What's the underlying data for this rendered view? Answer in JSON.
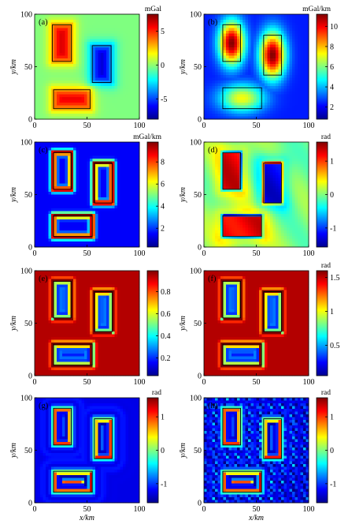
{
  "chart_data": [
    {
      "type": "heatmap",
      "panel_label": "(a)",
      "colorbar_unit": "mGal",
      "colorbar_ticks": [
        "5",
        "0",
        "-5"
      ],
      "colorbar_tick_values": [
        5,
        0,
        -5
      ],
      "colorbar_range": [
        -8,
        7.5
      ],
      "xlabel": "",
      "ylabel": "y/km",
      "xlim": [
        0,
        100
      ],
      "ylim": [
        0,
        100
      ],
      "x_ticks": [
        "0",
        "50",
        "100"
      ],
      "y_ticks": [
        "0",
        "50",
        "100"
      ],
      "bodies_km": [
        {
          "x0": 17,
          "x1": 35,
          "y0": 55,
          "y1": 90
        },
        {
          "x0": 55,
          "x1": 73,
          "y0": 35,
          "y1": 70
        },
        {
          "x0": 18,
          "x1": 53,
          "y0": 10,
          "y1": 28
        }
      ],
      "map": "gravity"
    },
    {
      "type": "heatmap",
      "panel_label": "(b)",
      "colorbar_unit": "mGal/km",
      "colorbar_ticks": [
        "10",
        "8",
        "6",
        "4",
        "2"
      ],
      "colorbar_tick_values": [
        10,
        8,
        6,
        4,
        2
      ],
      "colorbar_range": [
        0.8,
        11.2
      ],
      "xlabel": "",
      "ylabel": "y/km",
      "xlim": [
        0,
        100
      ],
      "ylim": [
        0,
        100
      ],
      "x_ticks": [
        "0",
        "50",
        "100"
      ],
      "y_ticks": [
        "0",
        "50",
        "100"
      ],
      "bodies_km": [
        {
          "x0": 18,
          "x1": 35,
          "y0": 55,
          "y1": 90
        },
        {
          "x0": 57,
          "x1": 74,
          "y0": 42,
          "y1": 80
        },
        {
          "x0": 18,
          "x1": 55,
          "y0": 10,
          "y1": 30
        }
      ],
      "map": "blob"
    },
    {
      "type": "heatmap",
      "panel_label": "(c)",
      "colorbar_unit": "mGal/km",
      "colorbar_ticks": [
        "8",
        "6",
        "4",
        "2"
      ],
      "colorbar_tick_values": [
        8,
        6,
        4,
        2
      ],
      "colorbar_range": [
        0.3,
        9.8
      ],
      "xlabel": "",
      "ylabel": "y/km",
      "xlim": [
        0,
        100
      ],
      "ylim": [
        0,
        100
      ],
      "x_ticks": [
        "0",
        "50",
        "100"
      ],
      "y_ticks": [
        "0",
        "50",
        "100"
      ],
      "bodies_km": [
        {
          "x0": 18,
          "x1": 35,
          "y0": 55,
          "y1": 90
        },
        {
          "x0": 57,
          "x1": 74,
          "y0": 42,
          "y1": 80
        },
        {
          "x0": 18,
          "x1": 55,
          "y0": 10,
          "y1": 30
        }
      ],
      "map": "edge"
    },
    {
      "type": "heatmap",
      "panel_label": "(d)",
      "colorbar_unit": "rad",
      "colorbar_ticks": [
        "1",
        "0",
        "-1"
      ],
      "colorbar_tick_values": [
        1,
        0,
        -1
      ],
      "colorbar_range": [
        -1.57,
        1.57
      ],
      "xlabel": "",
      "ylabel": "y/km",
      "xlim": [
        0,
        100
      ],
      "ylim": [
        0,
        100
      ],
      "x_ticks": [
        "0",
        "50",
        "100"
      ],
      "y_ticks": [
        "0",
        "50",
        "100"
      ],
      "bodies_km": [
        {
          "x0": 18,
          "x1": 35,
          "y0": 55,
          "y1": 90
        },
        {
          "x0": 57,
          "x1": 74,
          "y0": 42,
          "y1": 80
        },
        {
          "x0": 18,
          "x1": 55,
          "y0": 10,
          "y1": 30
        }
      ],
      "map": "tilt"
    },
    {
      "type": "heatmap",
      "panel_label": "(e)",
      "colorbar_unit": "",
      "colorbar_ticks": [
        "0.8",
        "0.6",
        "0.4",
        "0.2"
      ],
      "colorbar_tick_values": [
        0.8,
        0.6,
        0.4,
        0.2
      ],
      "colorbar_range": [
        0.04,
        0.99
      ],
      "xlabel": "",
      "ylabel": "y/km",
      "xlim": [
        0,
        100
      ],
      "ylim": [
        0,
        100
      ],
      "x_ticks": [
        "0",
        "50",
        "100"
      ],
      "y_ticks": [
        "0",
        "50",
        "100"
      ],
      "bodies_km": [
        {
          "x0": 18,
          "x1": 35,
          "y0": 55,
          "y1": 90
        },
        {
          "x0": 57,
          "x1": 74,
          "y0": 42,
          "y1": 80
        },
        {
          "x0": 18,
          "x1": 55,
          "y0": 10,
          "y1": 30
        }
      ],
      "map": "ring"
    },
    {
      "type": "heatmap",
      "panel_label": "(f)",
      "colorbar_unit": "rad",
      "colorbar_ticks": [
        "1.5",
        "1",
        "0.5"
      ],
      "colorbar_tick_values": [
        1.5,
        1,
        0.5
      ],
      "colorbar_range": [
        0.05,
        1.6
      ],
      "xlabel": "",
      "ylabel": "y/km",
      "xlim": [
        0,
        100
      ],
      "ylim": [
        0,
        100
      ],
      "x_ticks": [
        "0",
        "50",
        "100"
      ],
      "y_ticks": [
        "0",
        "50",
        "100"
      ],
      "bodies_km": [
        {
          "x0": 18,
          "x1": 35,
          "y0": 55,
          "y1": 90
        },
        {
          "x0": 57,
          "x1": 74,
          "y0": 42,
          "y1": 80
        },
        {
          "x0": 18,
          "x1": 55,
          "y0": 10,
          "y1": 30
        }
      ],
      "map": "ring"
    },
    {
      "type": "heatmap",
      "panel_label": "(g)",
      "colorbar_unit": "rad",
      "colorbar_ticks": [
        "1",
        "0",
        "-1"
      ],
      "colorbar_tick_values": [
        1,
        0,
        -1
      ],
      "colorbar_range": [
        -1.57,
        1.57
      ],
      "xlabel": "x/km",
      "ylabel": "y/km",
      "xlim": [
        0,
        100
      ],
      "ylim": [
        0,
        100
      ],
      "x_ticks": [
        "0",
        "50",
        "100"
      ],
      "y_ticks": [
        "0",
        "50",
        "100"
      ],
      "bodies_km": [
        {
          "x0": 18,
          "x1": 35,
          "y0": 55,
          "y1": 90
        },
        {
          "x0": 57,
          "x1": 74,
          "y0": 42,
          "y1": 80
        },
        {
          "x0": 18,
          "x1": 55,
          "y0": 10,
          "y1": 30
        }
      ],
      "map": "bullseye"
    },
    {
      "type": "heatmap",
      "panel_label": "(h)",
      "colorbar_unit": "rad",
      "colorbar_ticks": [
        "1",
        "0",
        "-1"
      ],
      "colorbar_tick_values": [
        1,
        0,
        -1
      ],
      "colorbar_range": [
        -1.57,
        1.57
      ],
      "xlabel": "x/km",
      "ylabel": "y/km",
      "xlim": [
        0,
        100
      ],
      "ylim": [
        0,
        100
      ],
      "x_ticks": [
        "0",
        "50",
        "100"
      ],
      "y_ticks": [
        "0",
        "50",
        "100"
      ],
      "bodies_km": [
        {
          "x0": 18,
          "x1": 35,
          "y0": 55,
          "y1": 90
        },
        {
          "x0": 57,
          "x1": 74,
          "y0": 42,
          "y1": 80
        },
        {
          "x0": 18,
          "x1": 55,
          "y0": 10,
          "y1": 30
        }
      ],
      "map": "bullseye_noisy"
    }
  ]
}
